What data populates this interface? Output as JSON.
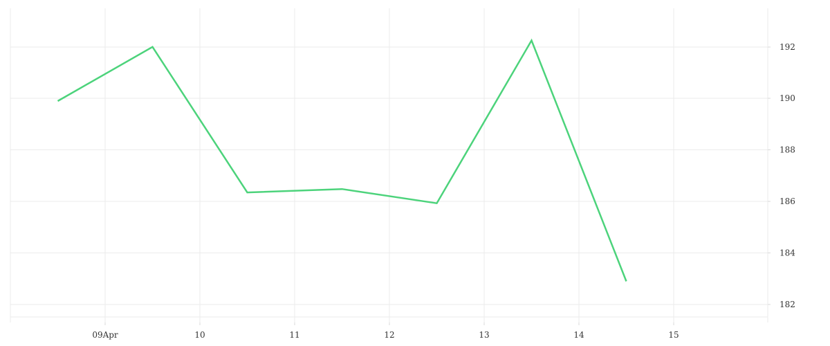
{
  "chart_data": {
    "type": "line",
    "title": "",
    "xlabel": "",
    "ylabel": "",
    "x_ticks": [
      "09Apr",
      "10",
      "11",
      "12",
      "13",
      "14",
      "15"
    ],
    "y_ticks": [
      "182",
      "184",
      "186",
      "188",
      "190",
      "192"
    ],
    "ylim": [
      181.3,
      193.5
    ],
    "grid": true,
    "y_axis_side": "right",
    "series": [
      {
        "color": "#4cd37b",
        "points": [
          {
            "x": "2024-04-08 12:00",
            "y": 189.9
          },
          {
            "x": "2024-04-09 12:00",
            "y": 192.0
          },
          {
            "x": "2024-04-10 12:00",
            "y": 186.35
          },
          {
            "x": "2024-04-11 12:00",
            "y": 186.48
          },
          {
            "x": "2024-04-12 12:00",
            "y": 185.93
          },
          {
            "x": "2024-04-13 12:00",
            "y": 192.25
          },
          {
            "x": "2024-04-14 12:00",
            "y": 182.9
          }
        ]
      }
    ]
  }
}
